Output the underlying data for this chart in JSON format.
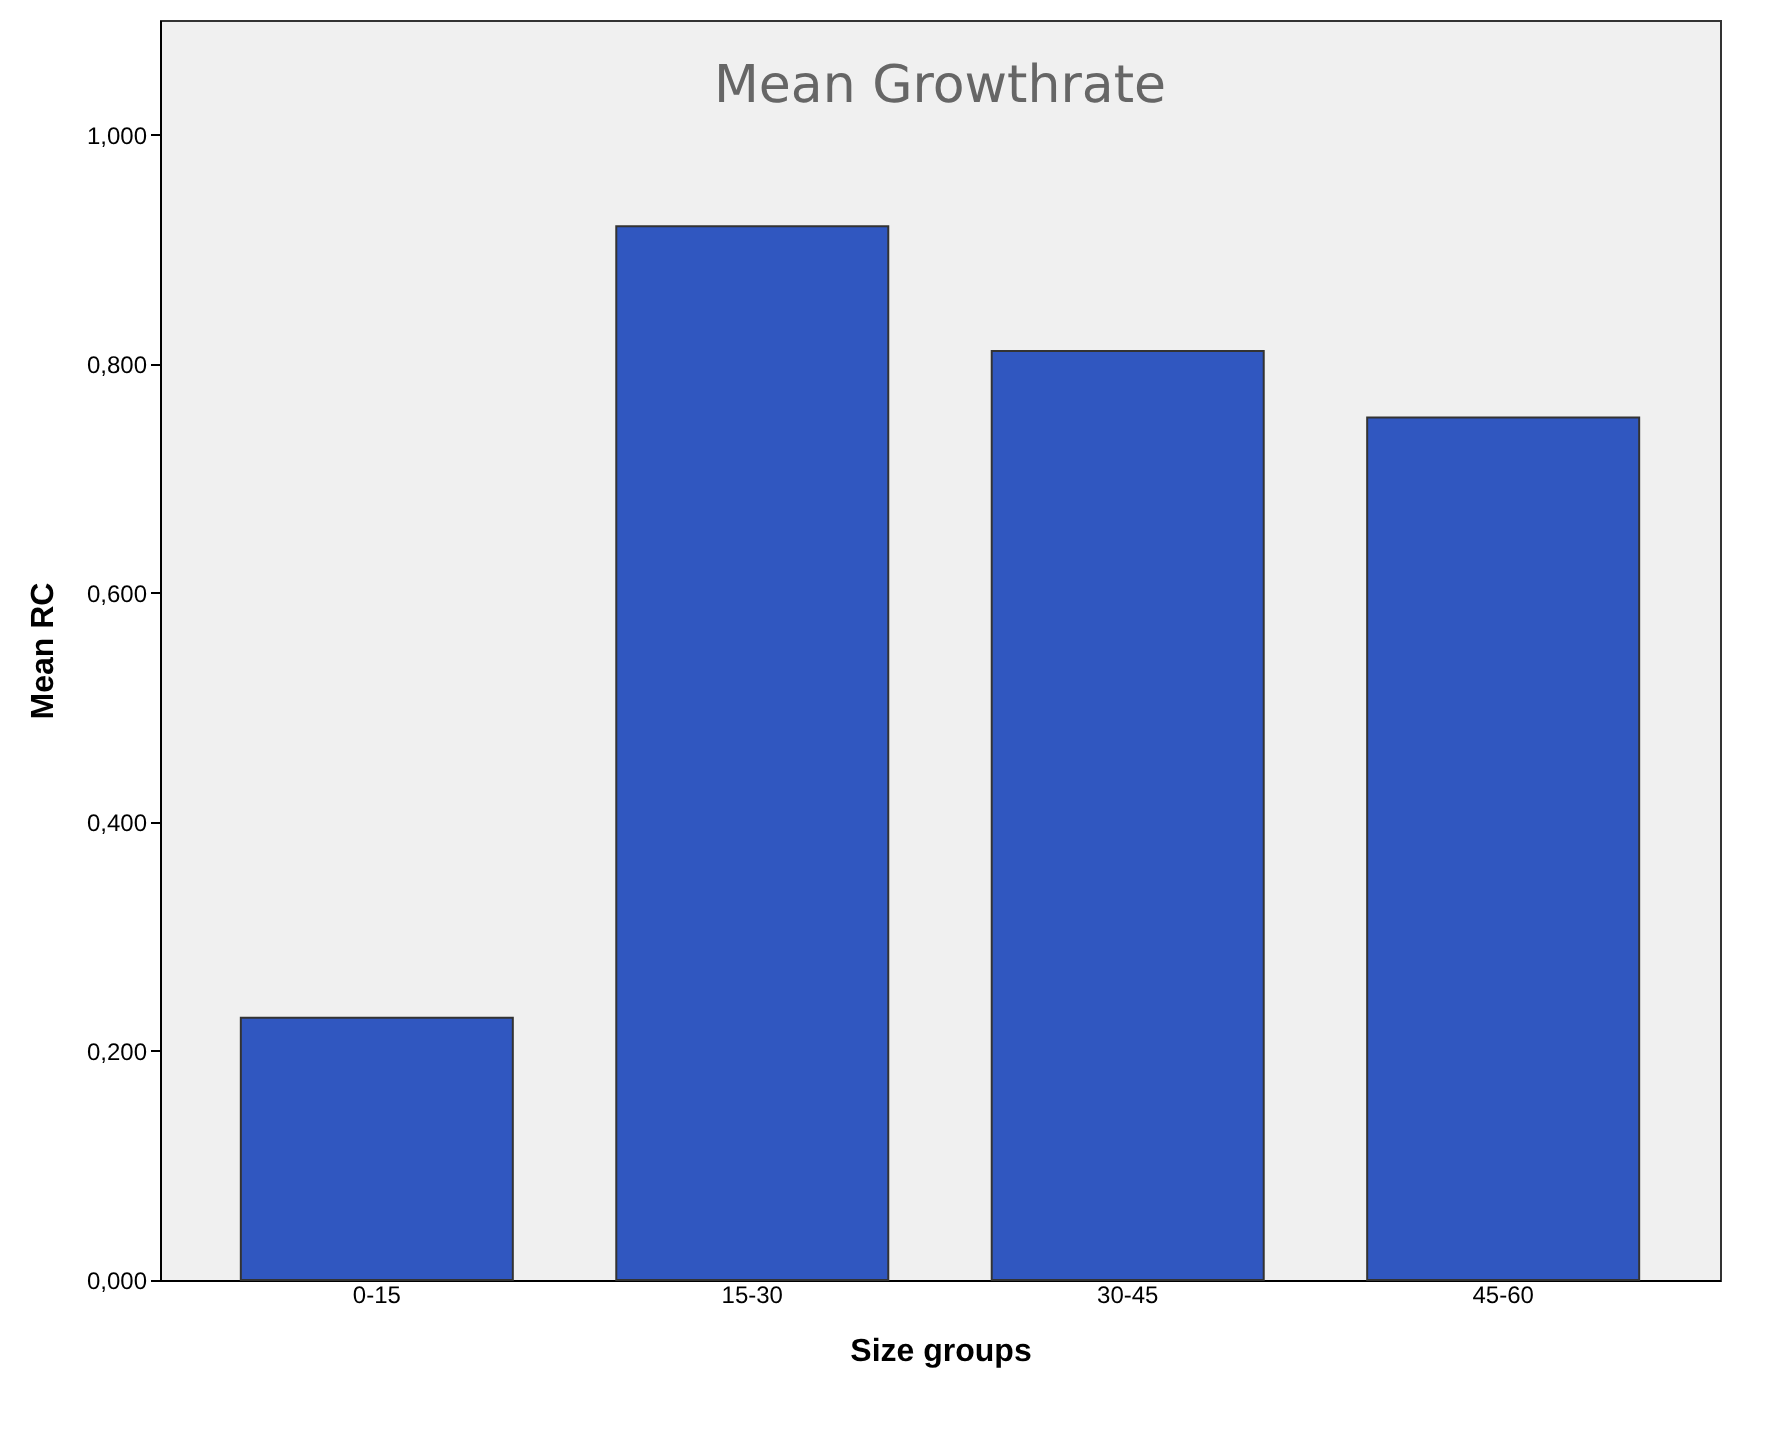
{
  "chart_data": {
    "type": "bar",
    "title": "Mean Growthrate",
    "xlabel": "Size groups",
    "ylabel": "Mean RC",
    "categories": [
      "0-15",
      "15-30",
      "30-45",
      "45-60"
    ],
    "values": [
      0.229,
      0.92,
      0.811,
      0.753
    ],
    "color": "#3057c0",
    "ylim": [
      0,
      1.1
    ],
    "yticks": [
      {
        "value": 0,
        "label": "0,000"
      },
      {
        "value": 0.2,
        "label": "0,200"
      },
      {
        "value": 0.4,
        "label": "0,400"
      },
      {
        "value": 0.6,
        "label": "0,600"
      },
      {
        "value": 0.8,
        "label": "0,800"
      },
      {
        "value": 1.0,
        "label": "1,000"
      }
    ],
    "grid": false
  }
}
